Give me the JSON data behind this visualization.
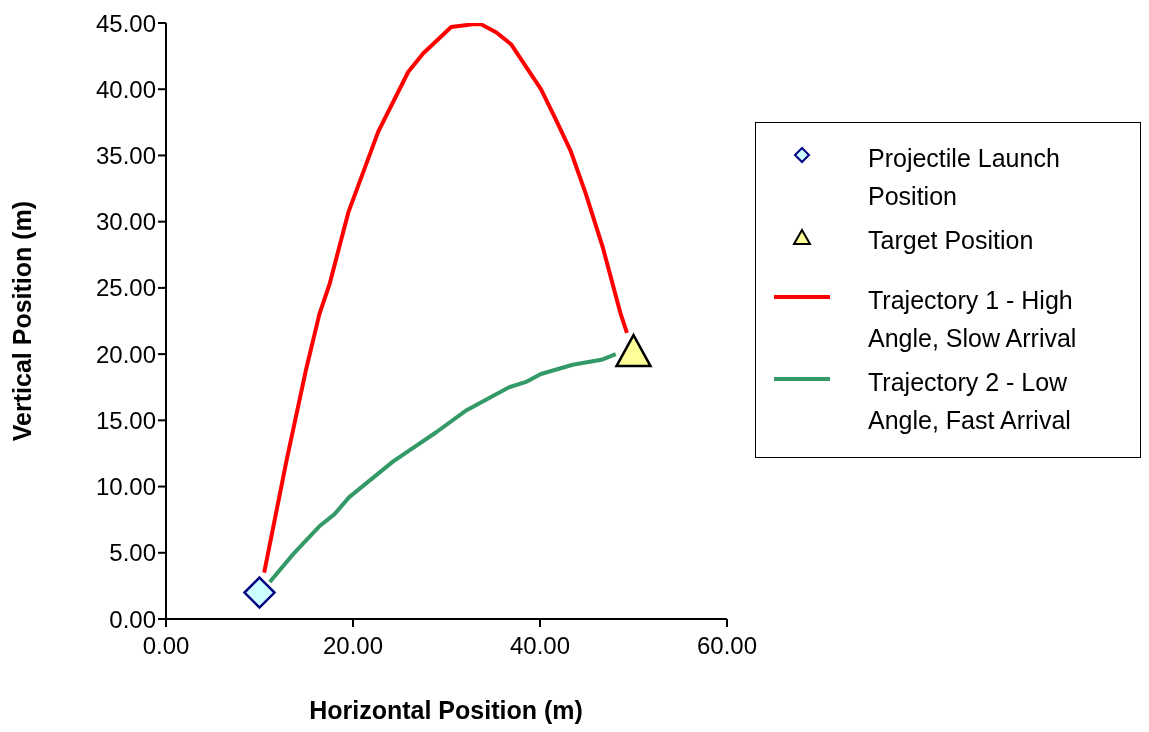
{
  "chart_data": {
    "type": "line",
    "xlabel": "Horizontal Position (m)",
    "ylabel": "Vertical Position (m)",
    "xlim": [
      0,
      60
    ],
    "xticks": [
      {
        "value": 0,
        "label": "0.00"
      },
      {
        "value": 20,
        "label": "20.00"
      },
      {
        "value": 40,
        "label": "40.00"
      },
      {
        "value": 60,
        "label": "60.00"
      }
    ],
    "ylim": [
      0,
      45
    ],
    "yticks": [
      {
        "value": 0,
        "label": "0.00"
      },
      {
        "value": 5,
        "label": "5.00"
      },
      {
        "value": 10,
        "label": "10.00"
      },
      {
        "value": 15,
        "label": "15.00"
      },
      {
        "value": 20,
        "label": "20.00"
      },
      {
        "value": 25,
        "label": "25.00"
      },
      {
        "value": 30,
        "label": "30.00"
      },
      {
        "value": 35,
        "label": "35.00"
      },
      {
        "value": 40,
        "label": "40.00"
      },
      {
        "value": 45,
        "label": "45.00"
      }
    ],
    "legend": "right",
    "line_style": "solid",
    "series": [
      {
        "name": "Projectile Launch Position",
        "type": "scatter",
        "marker": "diamond",
        "color": "#ccffff",
        "x": [
          10
        ],
        "values": [
          2
        ]
      },
      {
        "name": "Target Position",
        "type": "scatter",
        "marker": "triangle",
        "color": "#ffff99",
        "x": [
          50
        ],
        "values": [
          20
        ]
      },
      {
        "name": "Trajectory 1 - High Angle, Slow Arrival",
        "color": "#ff0000",
        "x": [
          10.5,
          12.9,
          15.0,
          16.4,
          17.5,
          19.5,
          22.7,
          25.9,
          27.5,
          30.5,
          32.8,
          33.7,
          35.3,
          36.9,
          40.1,
          41.7,
          43.3,
          44.9,
          46.7,
          48.6,
          49.3
        ],
        "values": [
          3.5,
          12.0,
          18.9,
          23.0,
          25.3,
          30.7,
          36.8,
          41.3,
          42.7,
          44.7,
          44.9,
          44.9,
          44.3,
          43.4,
          40.0,
          37.7,
          35.3,
          32.1,
          28.1,
          23.1,
          21.6
        ]
      },
      {
        "name": "Trajectory 2 - Low Angle, Fast Arrival",
        "color": "#339966",
        "x": [
          11.1,
          13.6,
          16.4,
          18.0,
          19.6,
          24.3,
          28.9,
          32.0,
          36.7,
          38.5,
          40.1,
          43.5,
          46.7,
          48.1
        ],
        "values": [
          2.8,
          4.9,
          7.0,
          7.9,
          9.2,
          11.9,
          14.1,
          15.7,
          17.5,
          17.9,
          18.5,
          19.2,
          19.6,
          20.0
        ]
      }
    ]
  }
}
